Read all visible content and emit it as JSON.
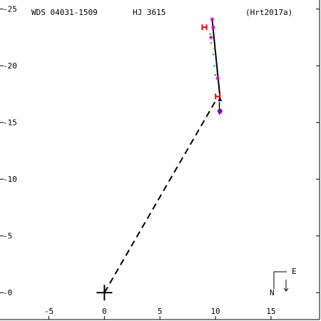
{
  "header": {
    "wds_id": "WDS 04031-1509",
    "discoverer": "HJ 3615",
    "reference": "(Hrt2017a)"
  },
  "compass": {
    "north": "N",
    "east": "E"
  },
  "chart_data": {
    "type": "scatter",
    "title": "",
    "xlabel": "",
    "ylabel": "",
    "xlim": [
      -9.4,
      19.5
    ],
    "ylim": [
      -2.5,
      25.8
    ],
    "x_ticks": [
      -5,
      0,
      5,
      10,
      15
    ],
    "y_ticks": [
      0,
      5,
      10,
      15,
      20,
      25
    ],
    "primary_star": [
      0,
      0
    ],
    "orbit_line": [
      [
        9.7,
        24.1
      ],
      [
        10.4,
        17.3
      ]
    ],
    "projection_line": [
      [
        0,
        0
      ],
      [
        9.95,
        16.8
      ]
    ],
    "velocity_arrow": [
      [
        10.35,
        16.8
      ],
      [
        10.35,
        15.7
      ]
    ],
    "series": [
      {
        "marker": "asterisk",
        "color": "#d400d4",
        "points": [
          [
            9.7,
            24.1
          ],
          [
            9.8,
            23.4
          ],
          [
            10.2,
            18.9
          ],
          [
            9.6,
            22.5
          ]
        ]
      },
      {
        "marker": "dot",
        "color": "#00aa00",
        "points": [
          [
            9.5,
            22.8
          ],
          [
            9.6,
            22.0
          ],
          [
            9.8,
            21.0
          ],
          [
            9.9,
            20.0
          ],
          [
            10.0,
            19.2
          ],
          [
            9.9,
            21.5
          ]
        ]
      },
      {
        "marker": "H",
        "color": "#ff0000",
        "points": [
          [
            9.0,
            23.4
          ],
          [
            10.2,
            17.3
          ]
        ]
      },
      {
        "marker": "circle",
        "color": "#8800cc",
        "points": [
          [
            10.4,
            16.0
          ]
        ]
      },
      {
        "marker": "triangle",
        "color": "#000000",
        "points": [
          [
            10.4,
            17.0
          ]
        ]
      }
    ]
  }
}
